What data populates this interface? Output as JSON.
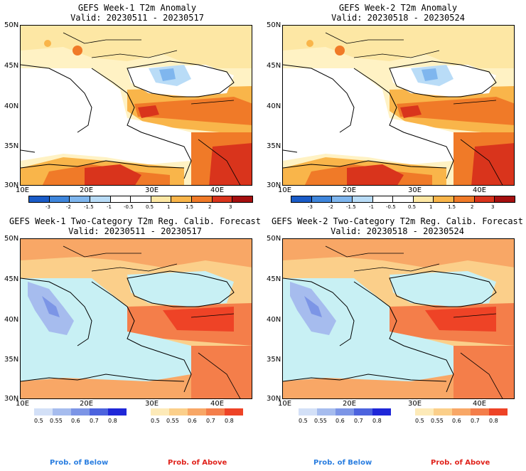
{
  "panels": [
    {
      "title_line1": "GEFS Week-1 T2m Anomaly",
      "title_line2": "Valid: 20230511 - 20230517"
    },
    {
      "title_line1": "GEFS Week-2 T2m Anomaly",
      "title_line2": "Valid: 20230518 - 20230524"
    },
    {
      "title_line1": "GEFS Week-1 Two-Category T2m Reg. Calib. Forecast",
      "title_line2": "Valid: 20230511 - 20230517"
    },
    {
      "title_line1": "GEFS Week-2 Two-Category T2m Reg. Calib. Forecast",
      "title_line2": "Valid: 20230518 - 20230524"
    }
  ],
  "lat_labels": [
    "50N",
    "45N",
    "40N",
    "35N",
    "30N"
  ],
  "lon_labels": [
    "10E",
    "20E",
    "30E",
    "40E"
  ],
  "anomaly_colorbar": {
    "labels": [
      "-3",
      "-2",
      "-1.5",
      "-1",
      "-0.5",
      "0.5",
      "1",
      "1.5",
      "2",
      "3"
    ],
    "colors": [
      "#1a5cc8",
      "#3f86dc",
      "#7fb6ee",
      "#b9dcf7",
      "#ffffff",
      "#ffffff",
      "#fde7a4",
      "#f9b54a",
      "#f07a28",
      "#d9341c",
      "#a50f0f"
    ]
  },
  "prob_below": {
    "labels": [
      "0.5",
      "0.55",
      "0.6",
      "0.7",
      "0.8"
    ],
    "colors": [
      "#d3e0f7",
      "#a6bcee",
      "#7c95e6",
      "#4c63de",
      "#1f27d8"
    ],
    "title": "Prob. of Below",
    "color": "#2a7ee0"
  },
  "prob_above": {
    "labels": [
      "0.5",
      "0.55",
      "0.6",
      "0.7",
      "0.8"
    ],
    "colors": [
      "#fdeab8",
      "#fbcf8a",
      "#f8a766",
      "#f47e4a",
      "#ee4326"
    ],
    "title": "Prob. of Above",
    "color": "#e0231c"
  }
}
